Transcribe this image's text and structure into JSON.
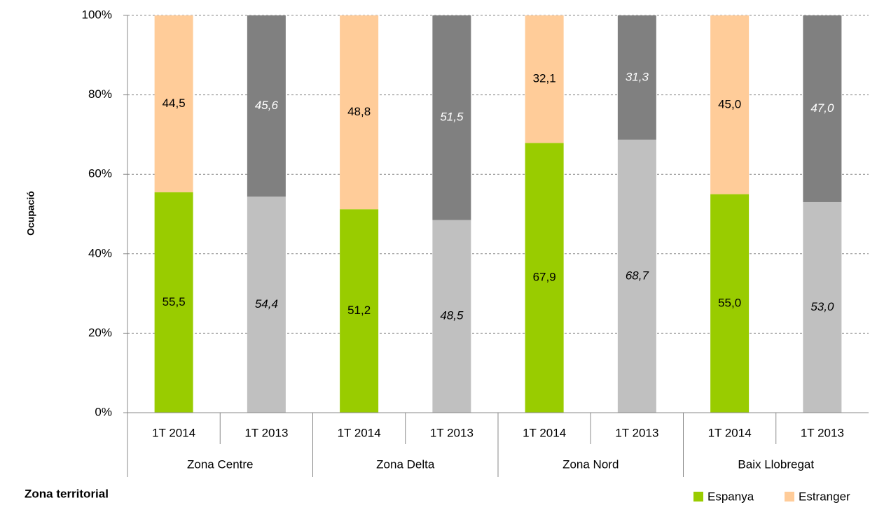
{
  "chart_data": {
    "type": "stacked_bar",
    "y_label": "Ocupació",
    "x_label": "Zona territorial",
    "categories": [
      "1T 2014",
      "1T 2013",
      "1T 2014",
      "1T 2013",
      "1T 2014",
      "1T 2013",
      "1T 2014",
      "1T 2013"
    ],
    "groups": [
      "Zona Centre",
      "Zona Delta",
      "Zona Nord",
      "Baix Llobregat"
    ],
    "italic": [
      false,
      true,
      false,
      true,
      false,
      true,
      false,
      true
    ],
    "series": [
      {
        "name": "Espanya",
        "color": "#99cc00",
        "bar_colors": [
          "#99cc00",
          "#c0c0c0",
          "#99cc00",
          "#c0c0c0",
          "#99cc00",
          "#c0c0c0",
          "#99cc00",
          "#c0c0c0"
        ],
        "label_colors": [
          "#000000",
          "#000000",
          "#000000",
          "#000000",
          "#000000",
          "#000000",
          "#000000",
          "#000000"
        ],
        "values": [
          55.5,
          54.4,
          51.2,
          48.5,
          67.9,
          68.7,
          55.0,
          53.0
        ],
        "value_labels": [
          "55,5",
          "54,4",
          "51,2",
          "48,5",
          "67,9",
          "68,7",
          "55,0",
          "53,0"
        ]
      },
      {
        "name": "Estranger",
        "color": "#ffcc99",
        "bar_colors": [
          "#ffcc99",
          "#808080",
          "#ffcc99",
          "#808080",
          "#ffcc99",
          "#808080",
          "#ffcc99",
          "#808080"
        ],
        "label_colors": [
          "#000000",
          "#ffffff",
          "#000000",
          "#ffffff",
          "#000000",
          "#ffffff",
          "#000000",
          "#ffffff"
        ],
        "values": [
          44.5,
          45.6,
          48.8,
          51.5,
          32.1,
          31.3,
          45.0,
          47.0
        ],
        "value_labels": [
          "44,5",
          "45,6",
          "48,8",
          "51,5",
          "32,1",
          "31,3",
          "45,0",
          "47,0"
        ]
      }
    ],
    "ylim": [
      0,
      100
    ],
    "yticks": [
      {
        "value": 0,
        "label": "0%"
      },
      {
        "value": 20,
        "label": "20%"
      },
      {
        "value": 40,
        "label": "40%"
      },
      {
        "value": 60,
        "label": "60%"
      },
      {
        "value": 80,
        "label": "80%"
      },
      {
        "value": 100,
        "label": "100%"
      }
    ],
    "grid": true,
    "legend": "bottom-right"
  }
}
